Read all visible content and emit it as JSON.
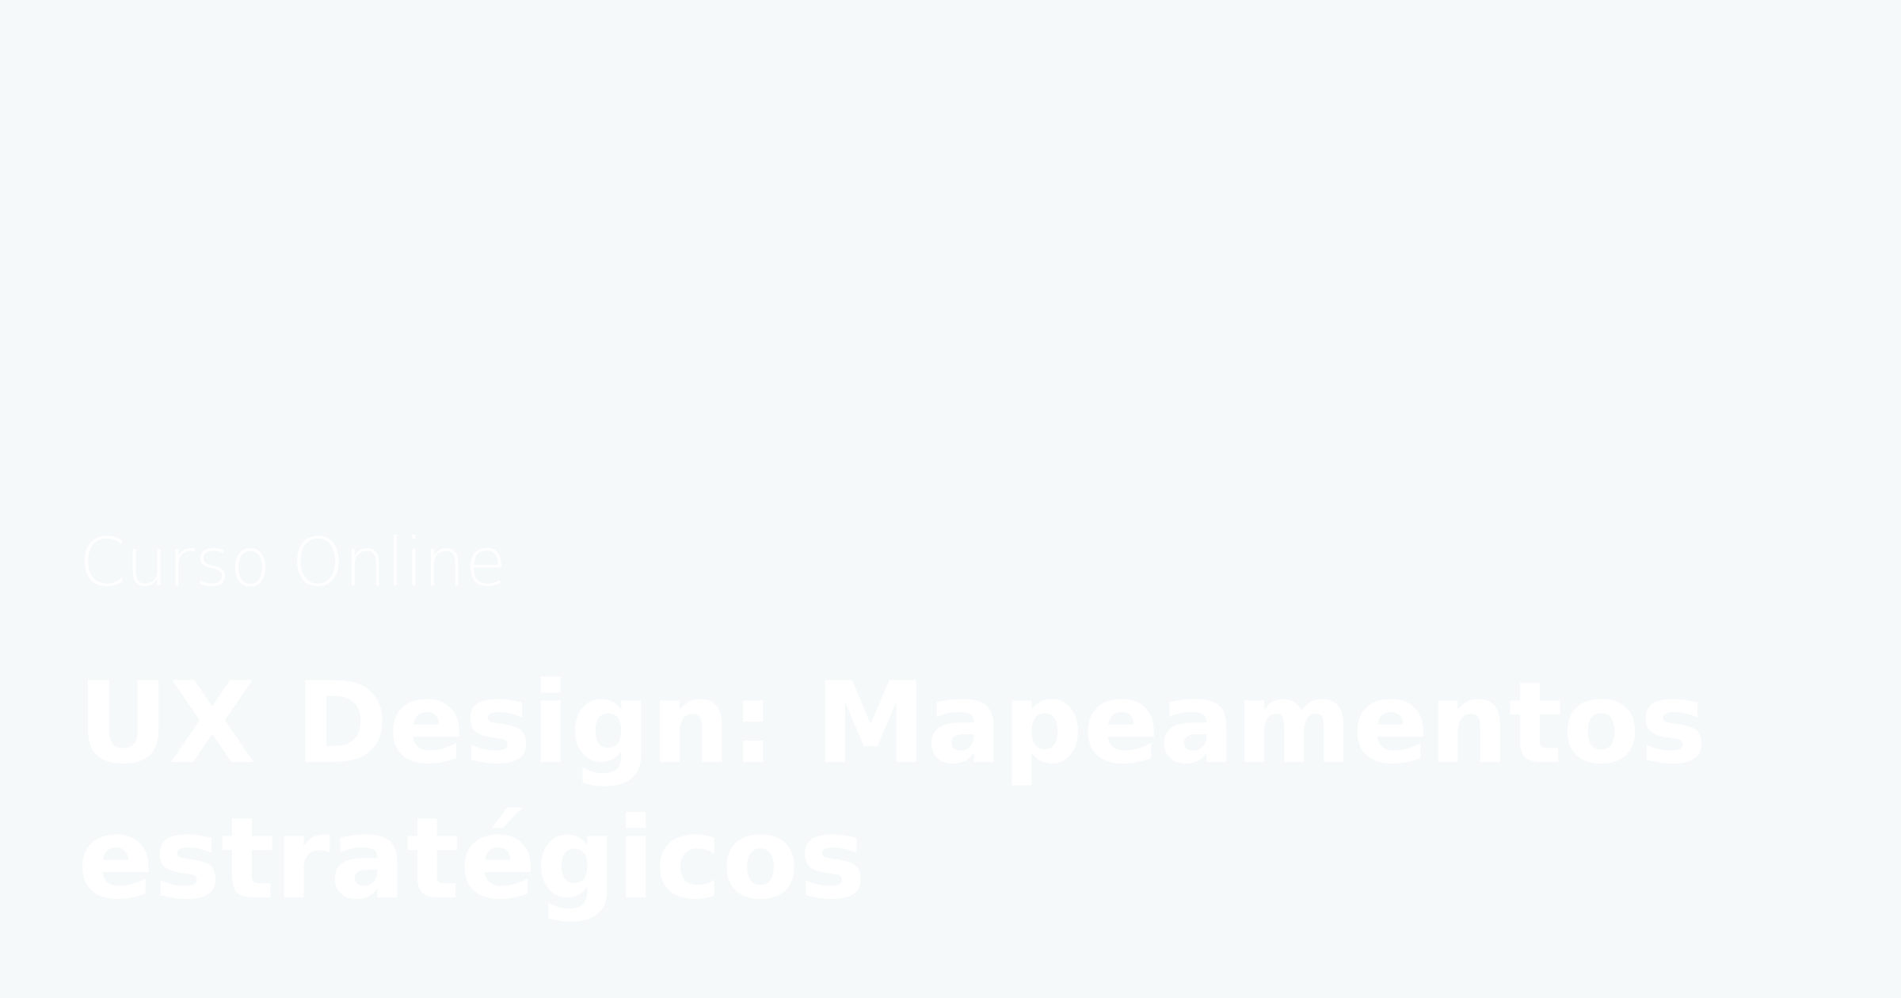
{
  "hero": {
    "eyebrow": "Curso Online",
    "title": "UX Design: Mapeamentos estratégicos"
  },
  "colors": {
    "background": "#f5f9fa",
    "text": "#ffffff"
  }
}
